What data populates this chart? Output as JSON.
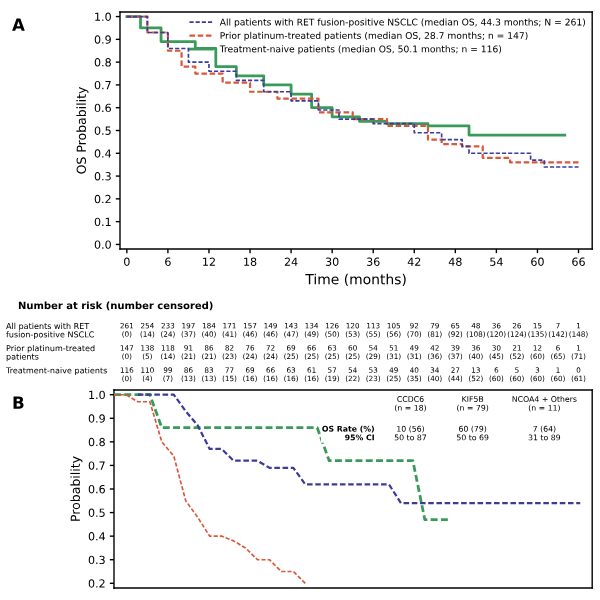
{
  "chart_data": [
    {
      "type": "step",
      "ylabel": "OS Probability",
      "xlabel": "Time (months)",
      "xlim": [
        -1,
        68
      ],
      "ylim": [
        -0.02,
        1.02
      ],
      "xticks": [
        0,
        6,
        12,
        18,
        24,
        30,
        36,
        42,
        48,
        54,
        60,
        66
      ],
      "yticks": [
        {
          "value": 0,
          "label": "0.0"
        },
        0.1,
        0.2,
        0.3,
        0.4,
        0.5,
        0.6,
        0.7,
        0.8,
        0.9,
        {
          "value": 1,
          "label": "1.0"
        }
      ],
      "legend": "top right",
      "grid": false,
      "line_style": "dashed",
      "series": [
        {
          "name": "All patients with RET fusion-positive NSCLC (median OS, 44.3 months; N = 261)",
          "color": "#3b3b9c",
          "x": [
            0,
            3,
            6,
            9,
            12,
            16,
            20,
            24,
            28,
            31,
            36,
            42,
            46,
            49,
            50,
            55,
            59,
            61,
            66
          ],
          "values": [
            1.0,
            0.93,
            0.86,
            0.8,
            0.76,
            0.72,
            0.67,
            0.63,
            0.59,
            0.55,
            0.53,
            0.49,
            0.46,
            0.43,
            0.4,
            0.4,
            0.37,
            0.34,
            0.34
          ]
        },
        {
          "name": "Prior platinum-treated patients (median OS, 28.7 months; n = 147)",
          "color": "#d9583b",
          "x": [
            0,
            3,
            6,
            8,
            10,
            14,
            18,
            22,
            28,
            33,
            38,
            44,
            46,
            49,
            52,
            56,
            66
          ],
          "values": [
            1.0,
            0.93,
            0.85,
            0.78,
            0.75,
            0.71,
            0.67,
            0.64,
            0.58,
            0.55,
            0.52,
            0.46,
            0.44,
            0.43,
            0.38,
            0.36,
            0.36
          ]
        },
        {
          "name": "Treatment-naive patients (median OS, 50.1 months; n = 116)",
          "color": "#3a9a5a",
          "line_style": "solid",
          "x": [
            0,
            2,
            5,
            8,
            10,
            13,
            16,
            20,
            24,
            27,
            30,
            34,
            38,
            44,
            50,
            64
          ],
          "values": [
            1.0,
            0.95,
            0.89,
            0.89,
            0.86,
            0.78,
            0.74,
            0.7,
            0.66,
            0.6,
            0.56,
            0.54,
            0.53,
            0.52,
            0.48,
            0.48
          ]
        }
      ],
      "annotations": [
        "A",
        "Number at risk (number censored)",
        "All patients with RET\nfusion-positive NSCLC",
        "Prior platinum-treated\npatients",
        "Treatment-naive patients",
        "261 254 233 197 184 171 157 149 143 134 126 120 113 105 92 79 65 48 36 26 15 7 1",
        "(0) (14) (24) (37) (40) (41) (46) (46) (47) (49) (50) (53) (55) (56) (70) (81) (92) (108) (120) (124) (135) (142) (148)",
        "147 138 118 91 86 82 76 72 69 66 63 60 54 51 49 42 39 36 30 21 12 6 1",
        "(0) (5) (14) (21) (21) (23) (24) (24) (25) (25) (25) (25) (29) (31) (31) (36) (37) (40) (45) (52) (60) (65) (71)",
        "116 110 99 86 83 77 69 66 63 61 57 54 53 49 40 34 27 13 6 5 3 1 0",
        "(0) (4) (7) (13) (13) (15) (16) (16) (16) (16) (19) (22) (23) (25) (35) (40) (44) (52) (60) (60) (60) (60) (61)"
      ]
    },
    {
      "type": "line",
      "ylabel": "Probability",
      "ylim": [
        0.18,
        1.02
      ],
      "yticks": [
        {
          "value": 0.2,
          "label": "0.2"
        },
        {
          "value": 0.3,
          "label": "0.3"
        },
        {
          "value": 0.4,
          "label": "0.4"
        },
        {
          "value": 0.5,
          "label": "0.5"
        },
        {
          "value": 0.6,
          "label": "0.6"
        },
        {
          "value": 0.7,
          "label": "0.7"
        },
        {
          "value": 0.8,
          "label": "0.8"
        },
        {
          "value": 0.9,
          "label": "0.9"
        },
        {
          "value": 1,
          "label": "1.0"
        }
      ],
      "categories": [
        null,
        null,
        null,
        null,
        null,
        null,
        null,
        null,
        null,
        null,
        null,
        null,
        null,
        null,
        null,
        null,
        null,
        null,
        null,
        null,
        null,
        null,
        null,
        null,
        null,
        null,
        null,
        null,
        null,
        null,
        null,
        null,
        null,
        null,
        null,
        null,
        null,
        null,
        null,
        null,
        null
      ],
      "tick_labels": "y",
      "grid": false,
      "line_style": "dashed",
      "series": [
        {
          "color": "#d9583b",
          "values": [
            1.0,
            1.0,
            0.97,
            0.97,
            0.8,
            0.74,
            0.55,
            0.48,
            0.4,
            0.4,
            0.38,
            0.35,
            0.3,
            0.3,
            0.25,
            0.25,
            0.2,
            null,
            null,
            null,
            null,
            null,
            null,
            null,
            null,
            null,
            null,
            null,
            null,
            null,
            null,
            null,
            null,
            null,
            null,
            null,
            null,
            null,
            null,
            null,
            null
          ]
        },
        {
          "color": "#3b3b9c",
          "values": [
            null,
            null,
            1.0,
            1.0,
            1.0,
            1.0,
            0.93,
            0.87,
            0.77,
            0.77,
            0.72,
            0.72,
            0.72,
            0.69,
            0.69,
            0.69,
            0.62,
            0.62,
            0.62,
            0.62,
            0.62,
            0.62,
            0.62,
            0.62,
            0.54,
            0.54,
            0.54,
            0.54,
            0.54,
            0.54,
            0.54,
            0.54,
            0.54,
            0.54,
            0.54,
            0.54,
            0.54,
            0.54,
            0.54,
            0.54,
            null
          ]
        },
        {
          "color": "#3a9a5a",
          "values": [
            1.0,
            1.0,
            1.0,
            1.0,
            0.86,
            0.86,
            0.86,
            0.86,
            0.86,
            0.86,
            0.86,
            0.86,
            0.86,
            0.86,
            0.86,
            0.86,
            0.86,
            0.86,
            0.72,
            0.72,
            0.72,
            0.72,
            0.72,
            0.72,
            0.72,
            0.72,
            0.47,
            0.47,
            0.47,
            null,
            null,
            null,
            null,
            null,
            null,
            null,
            null,
            null,
            null,
            null,
            null
          ]
        }
      ],
      "annotations": [
        "B",
        "CCDC6\n(n = 18)",
        "KIF5B\n(n = 79)",
        "NCOA4 + Others\n(n = 11)",
        "OS Rate (%)\n95% CI",
        "10 (56)\n50 to 87",
        "60 (79)\n50 to 69",
        "7 (64)\n31 to 89"
      ]
    }
  ]
}
